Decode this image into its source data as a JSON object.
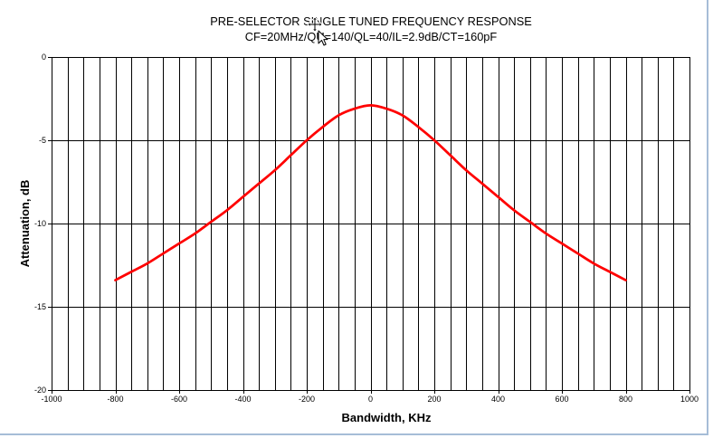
{
  "chart_data": {
    "type": "line",
    "title": "PRE-SELECTOR SINGLE TUNED FREQUENCY RESPONSE",
    "subtitle": "CF=20MHz/QU=140/QL=40/IL=2.9dB/CT=160pF",
    "xlabel": "Bandwidth, KHz",
    "ylabel": "Attenuation, dB",
    "xlim": [
      -1000,
      1000
    ],
    "ylim": [
      -20,
      0
    ],
    "xticks": [
      -1000,
      -800,
      -600,
      -400,
      -200,
      0,
      200,
      400,
      600,
      800,
      1000
    ],
    "yticks": [
      0,
      -5,
      -10,
      -15,
      -20
    ],
    "grid": true,
    "x_gridline_step": 50,
    "y_gridline_step": 5,
    "series": [
      {
        "color": "#ff0000",
        "x": [
          -800,
          -750,
          -700,
          -650,
          -600,
          -550,
          -500,
          -450,
          -400,
          -350,
          -300,
          -250,
          -200,
          -150,
          -100,
          -50,
          0,
          50,
          100,
          150,
          200,
          250,
          300,
          350,
          400,
          450,
          500,
          550,
          600,
          650,
          700,
          750,
          800
        ],
        "y": [
          -13.4,
          -12.9,
          -12.4,
          -11.8,
          -11.2,
          -10.6,
          -9.9,
          -9.2,
          -8.4,
          -7.6,
          -6.8,
          -5.9,
          -5.0,
          -4.2,
          -3.5,
          -3.1,
          -2.9,
          -3.1,
          -3.5,
          -4.2,
          -5.0,
          -5.9,
          -6.8,
          -7.6,
          -8.4,
          -9.2,
          -9.9,
          -10.6,
          -11.2,
          -11.8,
          -12.4,
          -12.9,
          -13.4
        ]
      }
    ]
  }
}
